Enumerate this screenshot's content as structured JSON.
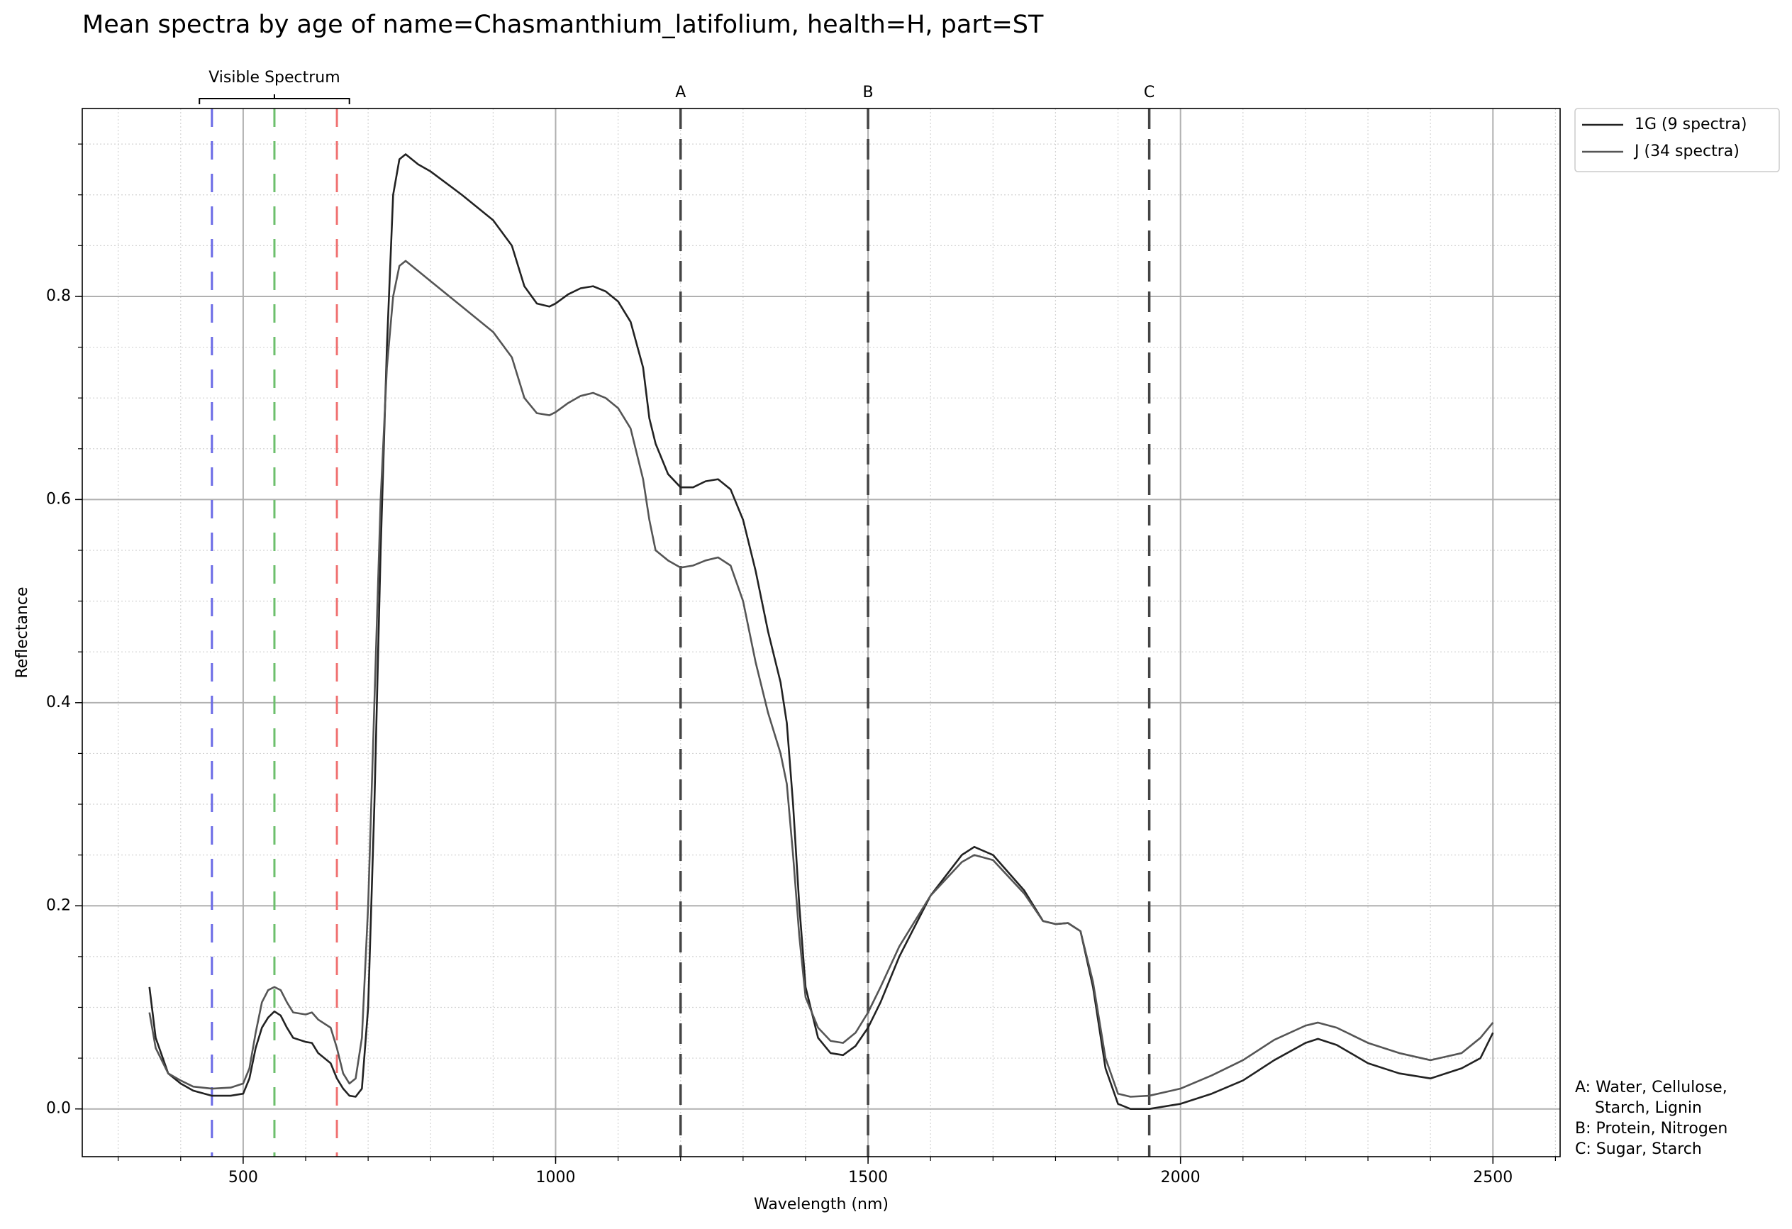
{
  "chart_data": {
    "type": "line",
    "title": "Mean spectra by age of name=Chasmanthium_latifolium, health=H, part=ST",
    "xlabel": "Wavelength (nm)",
    "ylabel": "Reflectance",
    "x": [
      350,
      360,
      380,
      400,
      420,
      450,
      480,
      500,
      510,
      520,
      530,
      540,
      550,
      560,
      570,
      580,
      600,
      610,
      620,
      640,
      650,
      660,
      670,
      680,
      690,
      700,
      710,
      720,
      730,
      740,
      750,
      760,
      780,
      800,
      850,
      900,
      930,
      950,
      970,
      990,
      1000,
      1020,
      1040,
      1060,
      1080,
      1100,
      1120,
      1140,
      1150,
      1160,
      1180,
      1200,
      1220,
      1240,
      1260,
      1280,
      1300,
      1320,
      1340,
      1360,
      1370,
      1380,
      1390,
      1400,
      1420,
      1440,
      1460,
      1480,
      1500,
      1520,
      1550,
      1600,
      1650,
      1670,
      1700,
      1750,
      1780,
      1800,
      1820,
      1840,
      1860,
      1880,
      1900,
      1920,
      1950,
      2000,
      2050,
      2100,
      2150,
      2200,
      2220,
      2250,
      2300,
      2350,
      2400,
      2450,
      2480,
      2500
    ],
    "series": [
      {
        "name": "1G (9 spectra)",
        "color": "#222222",
        "values": [
          0.12,
          0.07,
          0.035,
          0.025,
          0.018,
          0.013,
          0.013,
          0.015,
          0.03,
          0.06,
          0.08,
          0.09,
          0.096,
          0.092,
          0.08,
          0.07,
          0.066,
          0.065,
          0.055,
          0.045,
          0.03,
          0.02,
          0.013,
          0.012,
          0.02,
          0.1,
          0.3,
          0.55,
          0.75,
          0.9,
          0.935,
          0.94,
          0.93,
          0.923,
          0.9,
          0.875,
          0.85,
          0.81,
          0.793,
          0.79,
          0.793,
          0.802,
          0.808,
          0.81,
          0.805,
          0.795,
          0.775,
          0.73,
          0.68,
          0.655,
          0.625,
          0.612,
          0.612,
          0.618,
          0.62,
          0.61,
          0.58,
          0.53,
          0.47,
          0.42,
          0.38,
          0.3,
          0.2,
          0.12,
          0.07,
          0.055,
          0.053,
          0.062,
          0.08,
          0.105,
          0.15,
          0.21,
          0.25,
          0.258,
          0.25,
          0.215,
          0.185,
          0.182,
          0.183,
          0.175,
          0.12,
          0.04,
          0.005,
          0.0,
          0.0,
          0.005,
          0.015,
          0.028,
          0.048,
          0.065,
          0.069,
          0.063,
          0.045,
          0.035,
          0.03,
          0.04,
          0.05,
          0.075
        ]
      },
      {
        "name": "J (34 spectra)",
        "color": "#555555",
        "values": [
          0.095,
          0.06,
          0.035,
          0.028,
          0.022,
          0.02,
          0.021,
          0.025,
          0.04,
          0.075,
          0.105,
          0.117,
          0.12,
          0.117,
          0.105,
          0.095,
          0.093,
          0.095,
          0.088,
          0.08,
          0.06,
          0.035,
          0.025,
          0.03,
          0.07,
          0.2,
          0.4,
          0.6,
          0.73,
          0.8,
          0.83,
          0.835,
          0.825,
          0.815,
          0.79,
          0.765,
          0.74,
          0.7,
          0.685,
          0.683,
          0.686,
          0.695,
          0.702,
          0.705,
          0.7,
          0.69,
          0.67,
          0.62,
          0.58,
          0.55,
          0.54,
          0.533,
          0.535,
          0.54,
          0.543,
          0.535,
          0.5,
          0.44,
          0.39,
          0.35,
          0.32,
          0.25,
          0.17,
          0.11,
          0.08,
          0.067,
          0.065,
          0.075,
          0.095,
          0.12,
          0.16,
          0.21,
          0.243,
          0.25,
          0.245,
          0.212,
          0.185,
          0.182,
          0.183,
          0.175,
          0.125,
          0.05,
          0.015,
          0.012,
          0.013,
          0.02,
          0.033,
          0.048,
          0.068,
          0.082,
          0.085,
          0.08,
          0.065,
          0.055,
          0.048,
          0.055,
          0.07,
          0.085
        ]
      }
    ],
    "xlim": [
      242.5,
      2607.5
    ],
    "ylim": [
      -0.047,
      0.985
    ],
    "xticks": [
      500,
      1000,
      1500,
      2000,
      2500
    ],
    "yticks": [
      {
        "value": 0,
        "label": "0.0"
      },
      0.2,
      0.4,
      0.6,
      0.8
    ],
    "grid": true,
    "legend": "outside upper right",
    "color_lines": [
      {
        "value": 450,
        "color": "#6a6ae6"
      },
      {
        "value": 550,
        "color": "#6cbf6c"
      },
      {
        "value": 650,
        "color": "#f07272"
      }
    ],
    "marker_lines": [
      {
        "value": 1200,
        "label": "A",
        "color": "#444444"
      },
      {
        "value": 1500,
        "label": "B",
        "color": "#444444"
      },
      {
        "value": 1950,
        "label": "C",
        "color": "#444444"
      }
    ],
    "visible_spectrum": {
      "label": "Visible Spectrum",
      "range": [
        430,
        670
      ]
    },
    "note": [
      "A: Water, Cellulose,",
      "    Starch, Lignin",
      "B: Protein, Nitrogen",
      "C: Sugar, Starch"
    ]
  }
}
